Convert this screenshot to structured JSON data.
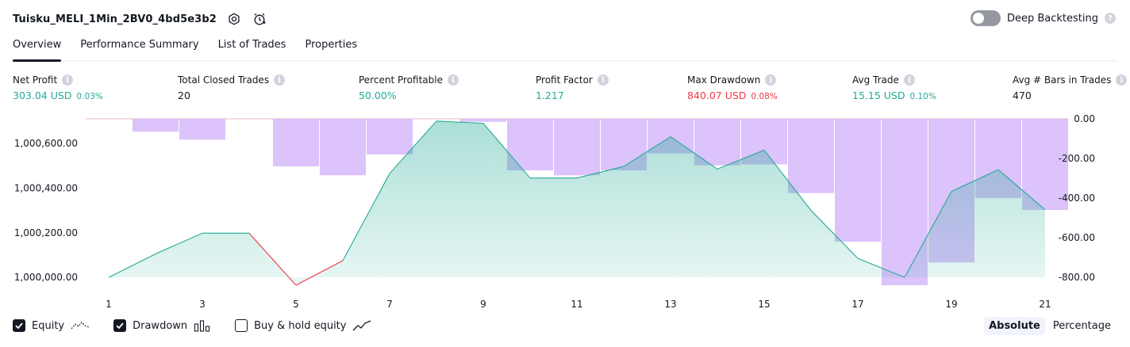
{
  "header": {
    "strategy_name": "Tuisku_MELI_1Min_2BV0_4bd5e3b2",
    "deep_backtesting_label": "Deep Backtesting",
    "deep_backtesting_enabled": false
  },
  "tabs": [
    {
      "label": "Overview",
      "active": true
    },
    {
      "label": "Performance Summary",
      "active": false
    },
    {
      "label": "List of Trades",
      "active": false
    },
    {
      "label": "Properties",
      "active": false
    }
  ],
  "metrics": [
    {
      "label": "Net Profit",
      "value": "303.04 USD",
      "pct": "0.03%",
      "tone": "green"
    },
    {
      "label": "Total Closed Trades",
      "value": "20",
      "pct": "",
      "tone": "dark"
    },
    {
      "label": "Percent Profitable",
      "value": "50.00%",
      "pct": "",
      "tone": "green"
    },
    {
      "label": "Profit Factor",
      "value": "1.217",
      "pct": "",
      "tone": "green"
    },
    {
      "label": "Max Drawdown",
      "value": "840.07 USD",
      "pct": "0.08%",
      "tone": "red"
    },
    {
      "label": "Avg Trade",
      "value": "15.15 USD",
      "pct": "0.10%",
      "tone": "green"
    },
    {
      "label": "Avg # Bars in Trades",
      "value": "470",
      "pct": "",
      "tone": "dark"
    }
  ],
  "chart_data": {
    "type": "area",
    "x": [
      1,
      2,
      3,
      4,
      5,
      6,
      7,
      8,
      9,
      10,
      11,
      12,
      13,
      14,
      15,
      16,
      17,
      18,
      19,
      20,
      21
    ],
    "x_tick_labels": [
      "1",
      "3",
      "5",
      "7",
      "9",
      "11",
      "13",
      "15",
      "17",
      "19",
      "21"
    ],
    "series": [
      {
        "name": "Equity",
        "axis": "left",
        "type": "area",
        "values": [
          1000000,
          1000105,
          1000198,
          1000198,
          999965,
          1000075,
          1000465,
          1000700,
          1000690,
          1000445,
          1000445,
          1000497,
          1000630,
          1000485,
          1000570,
          1000300,
          1000085,
          1000000,
          1000385,
          1000482,
          1000303
        ]
      },
      {
        "name": "Drawdown",
        "axis": "right",
        "type": "bar",
        "values": [
          0,
          -65,
          -105,
          0,
          -240,
          -285,
          -180,
          0,
          -15,
          -260,
          -285,
          -260,
          -175,
          -235,
          -230,
          -375,
          -620,
          -840,
          -725,
          -400,
          -460
        ]
      }
    ],
    "left_axis": {
      "ticks": [
        "1,000,000.00",
        "1,000,200.00",
        "1,000,400.00",
        "1,000,600.00"
      ],
      "values": [
        1000000,
        1000200,
        1000400,
        1000600
      ],
      "range": [
        999965,
        1000710
      ]
    },
    "right_axis": {
      "ticks": [
        "0.00",
        "-200.00",
        "-400.00",
        "-600.00",
        "-800.00"
      ],
      "values": [
        0,
        -200,
        -400,
        -600,
        -800
      ],
      "range": [
        -840,
        0
      ]
    },
    "colors": {
      "equity_line": "#22ab94",
      "equity_negative": "#f23645",
      "equity_fill": "#22ab94",
      "drawdown_bar": "#d6b8fa"
    }
  },
  "footer": {
    "toggles": [
      {
        "label": "Equity",
        "checked": true,
        "icon": "equity-icon"
      },
      {
        "label": "Drawdown",
        "checked": true,
        "icon": "drawdown-icon"
      },
      {
        "label": "Buy & hold equity",
        "checked": false,
        "icon": "buy-hold-icon"
      }
    ],
    "modes": [
      {
        "label": "Absolute",
        "active": true
      },
      {
        "label": "Percentage",
        "active": false
      }
    ]
  }
}
